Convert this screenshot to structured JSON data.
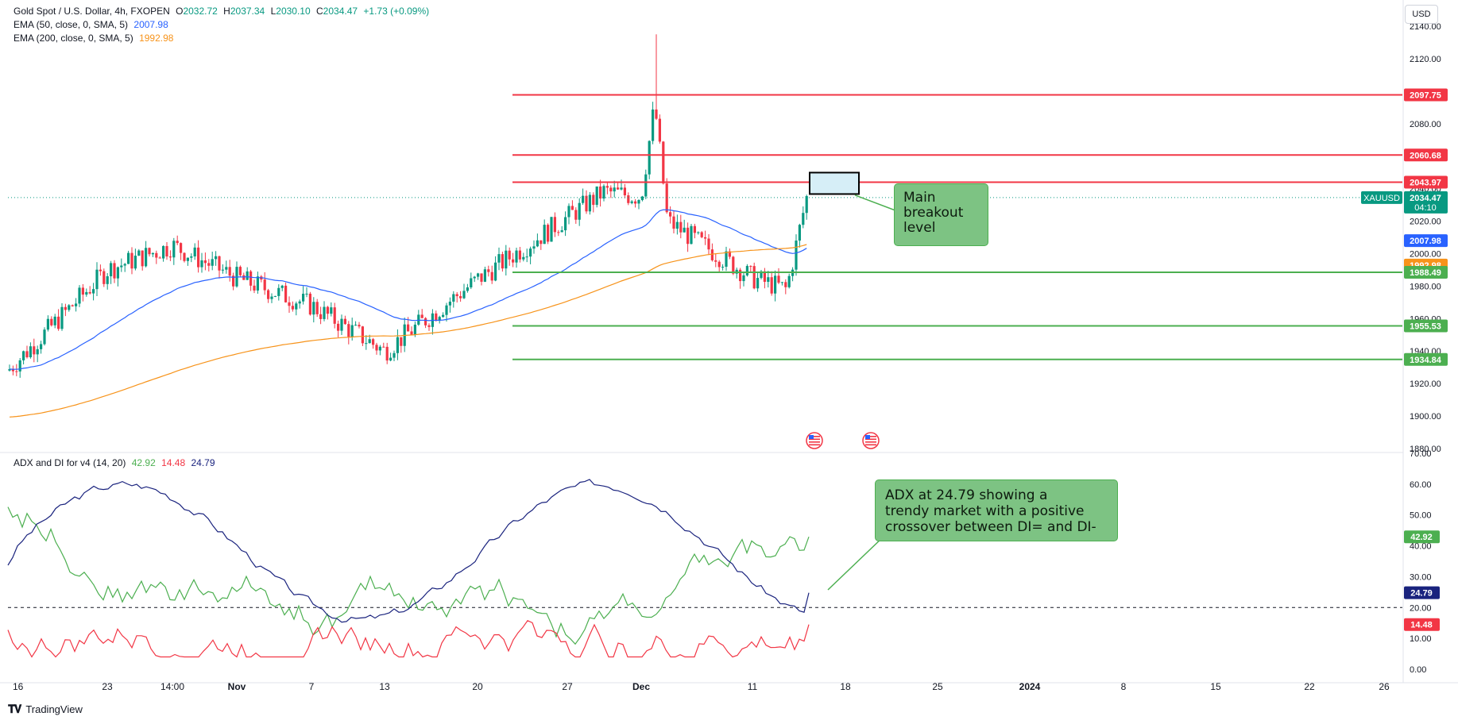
{
  "header": {
    "symbol_title": "Gold Spot / U.S. Dollar, 4h, FXOPEN",
    "ohlc": [
      {
        "label": "O",
        "value": "2032.72"
      },
      {
        "label": "H",
        "value": "2037.34"
      },
      {
        "label": "L",
        "value": "2030.10"
      },
      {
        "label": "C",
        "value": "2034.47"
      }
    ],
    "change": "+1.73 (+0.09%)",
    "ema50_label": "EMA (50, close, 0, SMA, 5)",
    "ema50_value": "2007.98",
    "ema200_label": "EMA (200, close, 0, SMA, 5)",
    "ema200_value": "1992.98",
    "currency_button": "USD"
  },
  "indicator": {
    "title": "ADX and DI for v4 (14, 20)",
    "plus_di": "42.92",
    "minus_di": "14.48",
    "adx": "24.79"
  },
  "annotations": {
    "breakout_note": [
      "Main",
      "breakout",
      "level"
    ],
    "adx_note": [
      "ADX at 24.79 showing a",
      "trendy market with a positive",
      "crossover between DI= and DI-"
    ]
  },
  "footer": {
    "brand": "TradingView"
  },
  "colors": {
    "up": "#089981",
    "down": "#f23645",
    "ema50": "#2962ff",
    "ema200": "#f7931a",
    "resistance": "#f23645",
    "support": "#4caf50",
    "adx": "#1a237e",
    "plus_di": "#4caf50",
    "minus_di": "#f23645"
  },
  "chart_data": [
    {
      "type": "candlestick",
      "title": "Gold Spot / U.S. Dollar, 4h, FXOPEN",
      "ylim": [
        1880,
        2140
      ],
      "y_ticks": [
        1880,
        1900,
        1920,
        1940,
        1960,
        1980,
        2000,
        2020,
        2040,
        2060,
        2080,
        2100,
        2120,
        2140
      ],
      "x_ticks": [
        "16",
        "23",
        "14:00",
        "Nov",
        "7",
        "13",
        "20",
        "27",
        "Dec",
        "11",
        "18",
        "25",
        "2024",
        "8",
        "15",
        "22",
        "26"
      ],
      "last_price": {
        "symbol": "XAUUSD",
        "value": "2034.47",
        "countdown": "04:10"
      },
      "ema50_last": "2007.98",
      "ema200_last": "1992.98",
      "resistance_levels": [
        2097.75,
        2060.68,
        2043.97
      ],
      "support_levels": [
        1988.49,
        1955.53,
        1934.84
      ],
      "price_path": [
        {
          "x": "16",
          "y": 1928
        },
        {
          "x": "23",
          "y": 1990
        },
        {
          "x": "14:00",
          "y": 2005
        },
        {
          "x": "Nov",
          "y": 1985
        },
        {
          "x": "7",
          "y": 1968
        },
        {
          "x": "13",
          "y": 1940
        },
        {
          "x": "20",
          "y": 1984
        },
        {
          "x": "27",
          "y": 2038
        },
        {
          "x": "Dec",
          "y": 2035
        },
        {
          "x": "Dec 4",
          "y": 2092
        },
        {
          "x": "Dec 5",
          "y": 2020
        },
        {
          "x": "11",
          "y": 1985
        },
        {
          "x": "Dec 13",
          "y": 1978
        },
        {
          "x": "Dec 14",
          "y": 2034.47
        }
      ],
      "candle_high_spike": 2135
    },
    {
      "type": "line",
      "title": "ADX and DI for v4 (14, 20)",
      "ylim": [
        0,
        70
      ],
      "y_ticks": [
        0,
        10,
        20,
        30,
        40,
        50,
        60,
        70
      ],
      "threshold": 20,
      "series": [
        {
          "name": "ADX",
          "last": 24.79
        },
        {
          "name": "DI+",
          "last": 42.92
        },
        {
          "name": "DI-",
          "last": 14.48
        }
      ]
    }
  ]
}
